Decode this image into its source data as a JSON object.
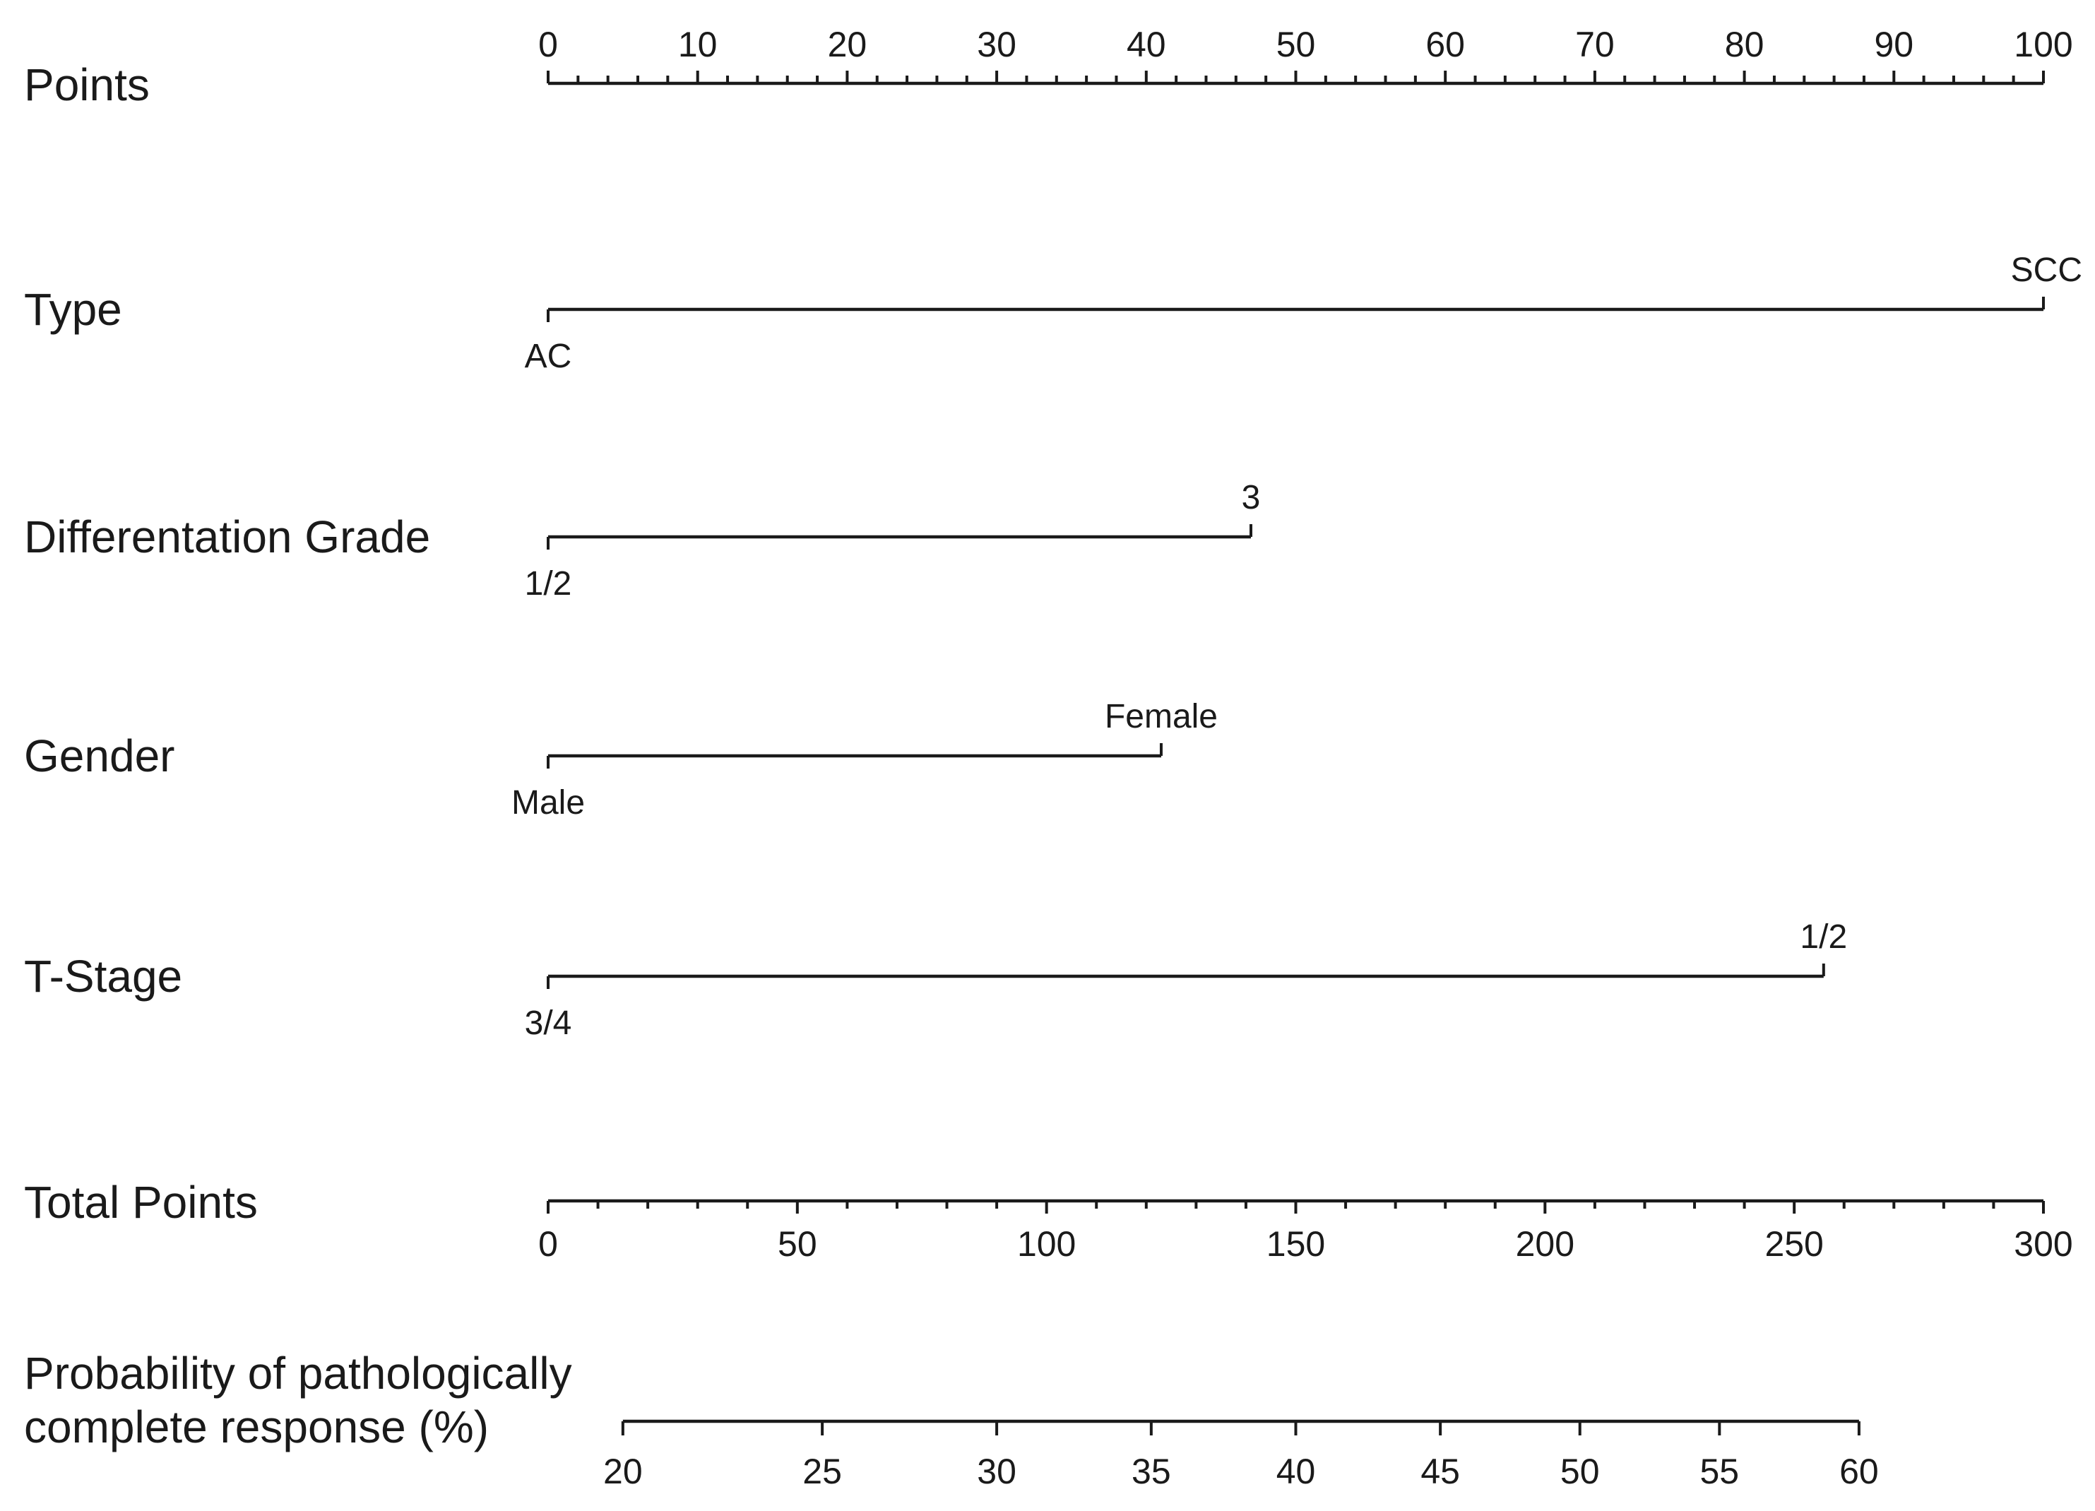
{
  "chart_data": {
    "type": "nomogram",
    "points_axis": {
      "label": "Points",
      "range": [
        0,
        100
      ],
      "major_ticks": [
        0,
        10,
        20,
        30,
        40,
        50,
        60,
        70,
        80,
        90,
        100
      ],
      "minor_step": 2
    },
    "variables": [
      {
        "name": "Type",
        "levels": [
          {
            "label": "AC",
            "points": 0,
            "label_position": "below"
          },
          {
            "label": "SCC",
            "points": 100,
            "label_position": "above"
          }
        ]
      },
      {
        "name": "Differentation Grade",
        "levels": [
          {
            "label": "1/2",
            "points": 0,
            "label_position": "below"
          },
          {
            "label": "3",
            "points": 47,
            "label_position": "above"
          }
        ]
      },
      {
        "name": "Gender",
        "levels": [
          {
            "label": "Male",
            "points": 0,
            "label_position": "below"
          },
          {
            "label": "Female",
            "points": 41,
            "label_position": "above"
          }
        ]
      },
      {
        "name": "T-Stage",
        "levels": [
          {
            "label": "3/4",
            "points": 0,
            "label_position": "below"
          },
          {
            "label": "1/2",
            "points": 85.3,
            "label_position": "above"
          }
        ]
      }
    ],
    "total_points_axis": {
      "label": "Total Points",
      "range": [
        0,
        300
      ],
      "major_ticks": [
        0,
        50,
        100,
        150,
        200,
        250,
        300
      ],
      "minor_step": 10
    },
    "probability_axis": {
      "label_lines": [
        "Probability of pathologically",
        "complete response (%)"
      ],
      "ticks": [
        {
          "value": 20,
          "total_points": 15
        },
        {
          "value": 25,
          "total_points": 55
        },
        {
          "value": 30,
          "total_points": 90
        },
        {
          "value": 35,
          "total_points": 121
        },
        {
          "value": 40,
          "total_points": 150
        },
        {
          "value": 45,
          "total_points": 179
        },
        {
          "value": 50,
          "total_points": 207
        },
        {
          "value": 55,
          "total_points": 235
        },
        {
          "value": 60,
          "total_points": 263
        }
      ]
    }
  }
}
